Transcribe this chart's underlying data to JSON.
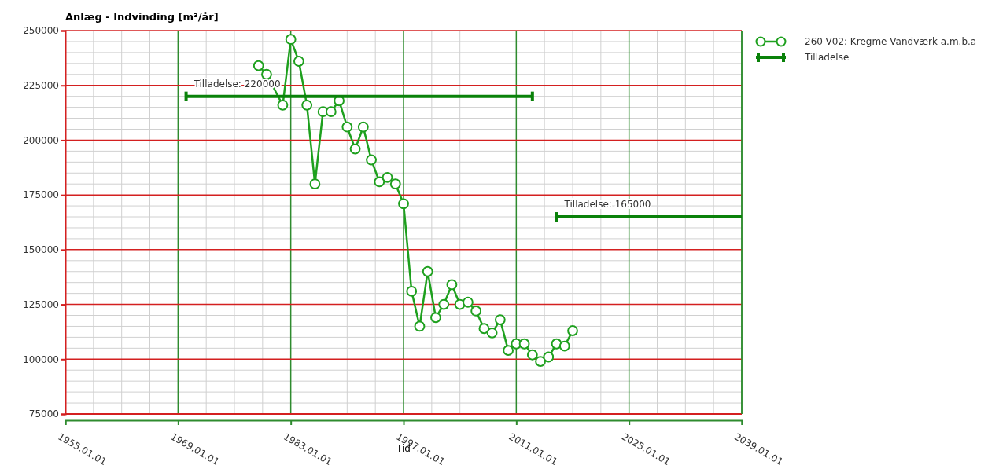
{
  "chart_data": {
    "type": "line",
    "title": "Anlæg - Indvinding [m³/år]",
    "xlabel": "Tid",
    "xlim": [
      "1955-01-01",
      "2039-01-01"
    ],
    "xticks": [
      {
        "value": "1955-01-01",
        "label": "1955.01.01"
      },
      {
        "value": "1969-01-01",
        "label": "1969.01.01"
      },
      {
        "value": "1983-01-01",
        "label": "1983.01.01"
      },
      {
        "value": "1997-01-01",
        "label": "1997.01.01"
      },
      {
        "value": "2011-01-01",
        "label": "2011.01.01"
      },
      {
        "value": "2025-01-01",
        "label": "2025.01.01"
      },
      {
        "value": "2039-01-01",
        "label": "2039.01.01"
      }
    ],
    "ylim": [
      75000,
      250000
    ],
    "yticks": [
      75000,
      100000,
      125000,
      150000,
      175000,
      200000,
      225000,
      250000
    ],
    "grid": true,
    "legend": "top right",
    "series": [
      {
        "name": "260-V02: Kregme Vandværk a.m.b.a",
        "color": "#1ea01e",
        "marker": "circle",
        "x": [
          "1979",
          "1980",
          "1982",
          "1983",
          "1984",
          "1985",
          "1986",
          "1987",
          "1988",
          "1989",
          "1990",
          "1991",
          "1992",
          "1993",
          "1994",
          "1995",
          "1996",
          "1997",
          "1998",
          "1999",
          "2000",
          "2001",
          "2002",
          "2003",
          "2004",
          "2005",
          "2006",
          "2007",
          "2008",
          "2009",
          "2010",
          "2011",
          "2012",
          "2013",
          "2014",
          "2015",
          "2016",
          "2017",
          "2018"
        ],
        "values": [
          234000,
          230000,
          216000,
          246000,
          236000,
          216000,
          180000,
          213000,
          213000,
          218000,
          206000,
          196000,
          206000,
          191000,
          181000,
          183000,
          180000,
          171000,
          131000,
          115000,
          140000,
          119000,
          125000,
          134000,
          125000,
          126000,
          122000,
          114000,
          112000,
          118000,
          104000,
          107000,
          107000,
          102000,
          99000,
          101000,
          107000,
          106000,
          113000
        ]
      },
      {
        "name": "Tilladelse",
        "color": "#0a820a",
        "marker": "none",
        "x": [
          "1970",
          "2013",
          "2014",
          "2016",
          "2039"
        ],
        "values": [
          220000,
          220000,
          null,
          165000,
          165000
        ]
      }
    ],
    "annotations": [
      {
        "text": "Tilladelse: 220000",
        "x": "1970",
        "y": 220000
      },
      {
        "text": "Tilladelse: 165000",
        "x": "2016",
        "y": 165000
      }
    ]
  }
}
